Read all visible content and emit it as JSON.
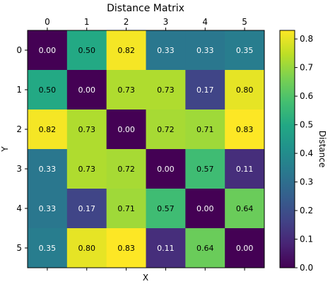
{
  "chart_data": {
    "type": "heatmap",
    "title": "Distance Matrix",
    "xlabel": "X",
    "ylabel": "Y",
    "x_ticks": [
      "0",
      "1",
      "2",
      "3",
      "4",
      "5"
    ],
    "y_ticks": [
      "0",
      "1",
      "2",
      "3",
      "4",
      "5"
    ],
    "x_tick_position": "top",
    "values": [
      [
        0.0,
        0.5,
        0.82,
        0.33,
        0.33,
        0.35
      ],
      [
        0.5,
        0.0,
        0.73,
        0.73,
        0.17,
        0.8
      ],
      [
        0.82,
        0.73,
        0.0,
        0.72,
        0.71,
        0.83
      ],
      [
        0.33,
        0.73,
        0.72,
        0.0,
        0.57,
        0.11
      ],
      [
        0.33,
        0.17,
        0.71,
        0.57,
        0.0,
        0.64
      ],
      [
        0.35,
        0.8,
        0.83,
        0.11,
        0.64,
        0.0
      ]
    ],
    "cell_labels": [
      [
        "0.00",
        "0.50",
        "0.82",
        "0.33",
        "0.33",
        "0.35"
      ],
      [
        "0.50",
        "0.00",
        "0.73",
        "0.73",
        "0.17",
        "0.80"
      ],
      [
        "0.82",
        "0.73",
        "0.00",
        "0.72",
        "0.71",
        "0.83"
      ],
      [
        "0.33",
        "0.73",
        "0.72",
        "0.00",
        "0.57",
        "0.11"
      ],
      [
        "0.33",
        "0.17",
        "0.71",
        "0.57",
        "0.00",
        "0.64"
      ],
      [
        "0.35",
        "0.80",
        "0.83",
        "0.11",
        "0.64",
        "0.00"
      ]
    ],
    "colormap": "viridis",
    "vmin": 0.0,
    "vmax": 0.83,
    "colorbar": {
      "label": "Distance",
      "ticks": [
        0.0,
        0.1,
        0.2,
        0.3,
        0.4,
        0.5,
        0.6,
        0.7,
        0.8
      ],
      "tick_labels": [
        "0.0",
        "0.1",
        "0.2",
        "0.3",
        "0.4",
        "0.5",
        "0.6",
        "0.7",
        "0.8"
      ],
      "position": "right"
    },
    "grid": false
  }
}
